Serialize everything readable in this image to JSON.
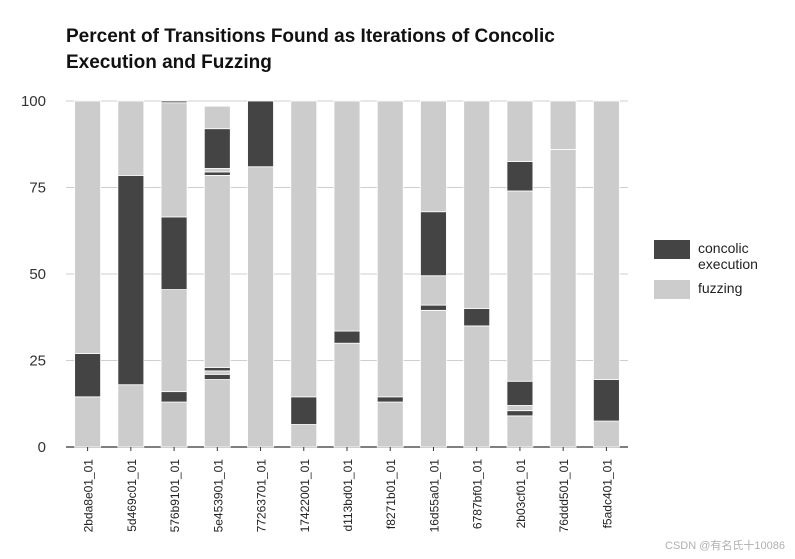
{
  "chart_data": {
    "type": "bar",
    "stacked": true,
    "title": "Percent of Transitions Found as Iterations of Concolic Execution and Fuzzing",
    "xlabel": "",
    "ylabel": "",
    "ylim": [
      0,
      100
    ],
    "yticks": [
      0,
      25,
      50,
      75,
      100
    ],
    "grid": true,
    "legend_position": "right",
    "colors": {
      "concolic execution": "#444444",
      "fuzzing": "#cccccc"
    },
    "legend": [
      {
        "name": "concolic execution",
        "label": "concolic execution"
      },
      {
        "name": "fuzzing",
        "label": "fuzzing"
      }
    ],
    "categories": [
      "2bda8e01_01",
      "5d469c01_01",
      "576b9101_01",
      "5e453901_01",
      "77263701_01",
      "17422001_01",
      "d113bd01_01",
      "f8271b01_01",
      "16d55a01_01",
      "6787bf01_01",
      "2b03cf01_01",
      "76ddd501_01",
      "f5adc401_01"
    ],
    "stacks": [
      [
        {
          "type": "fuzzing",
          "value": 14.5
        },
        {
          "type": "concolic execution",
          "value": 12.5
        },
        {
          "type": "fuzzing",
          "value": 73
        }
      ],
      [
        {
          "type": "fuzzing",
          "value": 18
        },
        {
          "type": "concolic execution",
          "value": 60.5
        },
        {
          "type": "fuzzing",
          "value": 21.5
        }
      ],
      [
        {
          "type": "fuzzing",
          "value": 13
        },
        {
          "type": "concolic execution",
          "value": 3
        },
        {
          "type": "fuzzing",
          "value": 29.5
        },
        {
          "type": "concolic execution",
          "value": 21
        },
        {
          "type": "fuzzing",
          "value": 33
        },
        {
          "type": "concolic execution",
          "value": 0.5
        }
      ],
      [
        {
          "type": "fuzzing",
          "value": 19.5
        },
        {
          "type": "concolic execution",
          "value": 1.5
        },
        {
          "type": "fuzzing",
          "value": 1
        },
        {
          "type": "concolic execution",
          "value": 1
        },
        {
          "type": "fuzzing",
          "value": 55.5
        },
        {
          "type": "concolic execution",
          "value": 1
        },
        {
          "type": "fuzzing",
          "value": 1
        },
        {
          "type": "concolic execution",
          "value": 11.5
        },
        {
          "type": "fuzzing",
          "value": 6.5
        }
      ],
      [
        {
          "type": "fuzzing",
          "value": 81
        },
        {
          "type": "concolic execution",
          "value": 19
        }
      ],
      [
        {
          "type": "fuzzing",
          "value": 6.5
        },
        {
          "type": "concolic execution",
          "value": 8
        },
        {
          "type": "fuzzing",
          "value": 85.5
        }
      ],
      [
        {
          "type": "fuzzing",
          "value": 30
        },
        {
          "type": "concolic execution",
          "value": 3.5
        },
        {
          "type": "fuzzing",
          "value": 66.5
        }
      ],
      [
        {
          "type": "fuzzing",
          "value": 13
        },
        {
          "type": "concolic execution",
          "value": 1.5
        },
        {
          "type": "fuzzing",
          "value": 85.5
        }
      ],
      [
        {
          "type": "fuzzing",
          "value": 39.5
        },
        {
          "type": "concolic execution",
          "value": 1.5
        },
        {
          "type": "fuzzing",
          "value": 8.5
        },
        {
          "type": "concolic execution",
          "value": 18.5
        },
        {
          "type": "fuzzing",
          "value": 32
        }
      ],
      [
        {
          "type": "fuzzing",
          "value": 35
        },
        {
          "type": "concolic execution",
          "value": 5
        },
        {
          "type": "fuzzing",
          "value": 60
        }
      ],
      [
        {
          "type": "fuzzing",
          "value": 9
        },
        {
          "type": "concolic execution",
          "value": 1.5
        },
        {
          "type": "fuzzing",
          "value": 1.5
        },
        {
          "type": "concolic execution",
          "value": 7
        },
        {
          "type": "fuzzing",
          "value": 55
        },
        {
          "type": "concolic execution",
          "value": 8.5
        },
        {
          "type": "fuzzing",
          "value": 17.5
        }
      ],
      [
        {
          "type": "fuzzing",
          "value": 86
        },
        {
          "type": "fuzzing",
          "value": 14
        }
      ],
      [
        {
          "type": "fuzzing",
          "value": 7.5
        },
        {
          "type": "concolic execution",
          "value": 12
        },
        {
          "type": "fuzzing",
          "value": 80.5
        }
      ]
    ]
  },
  "watermark": "CSDN @有名氏十10086"
}
